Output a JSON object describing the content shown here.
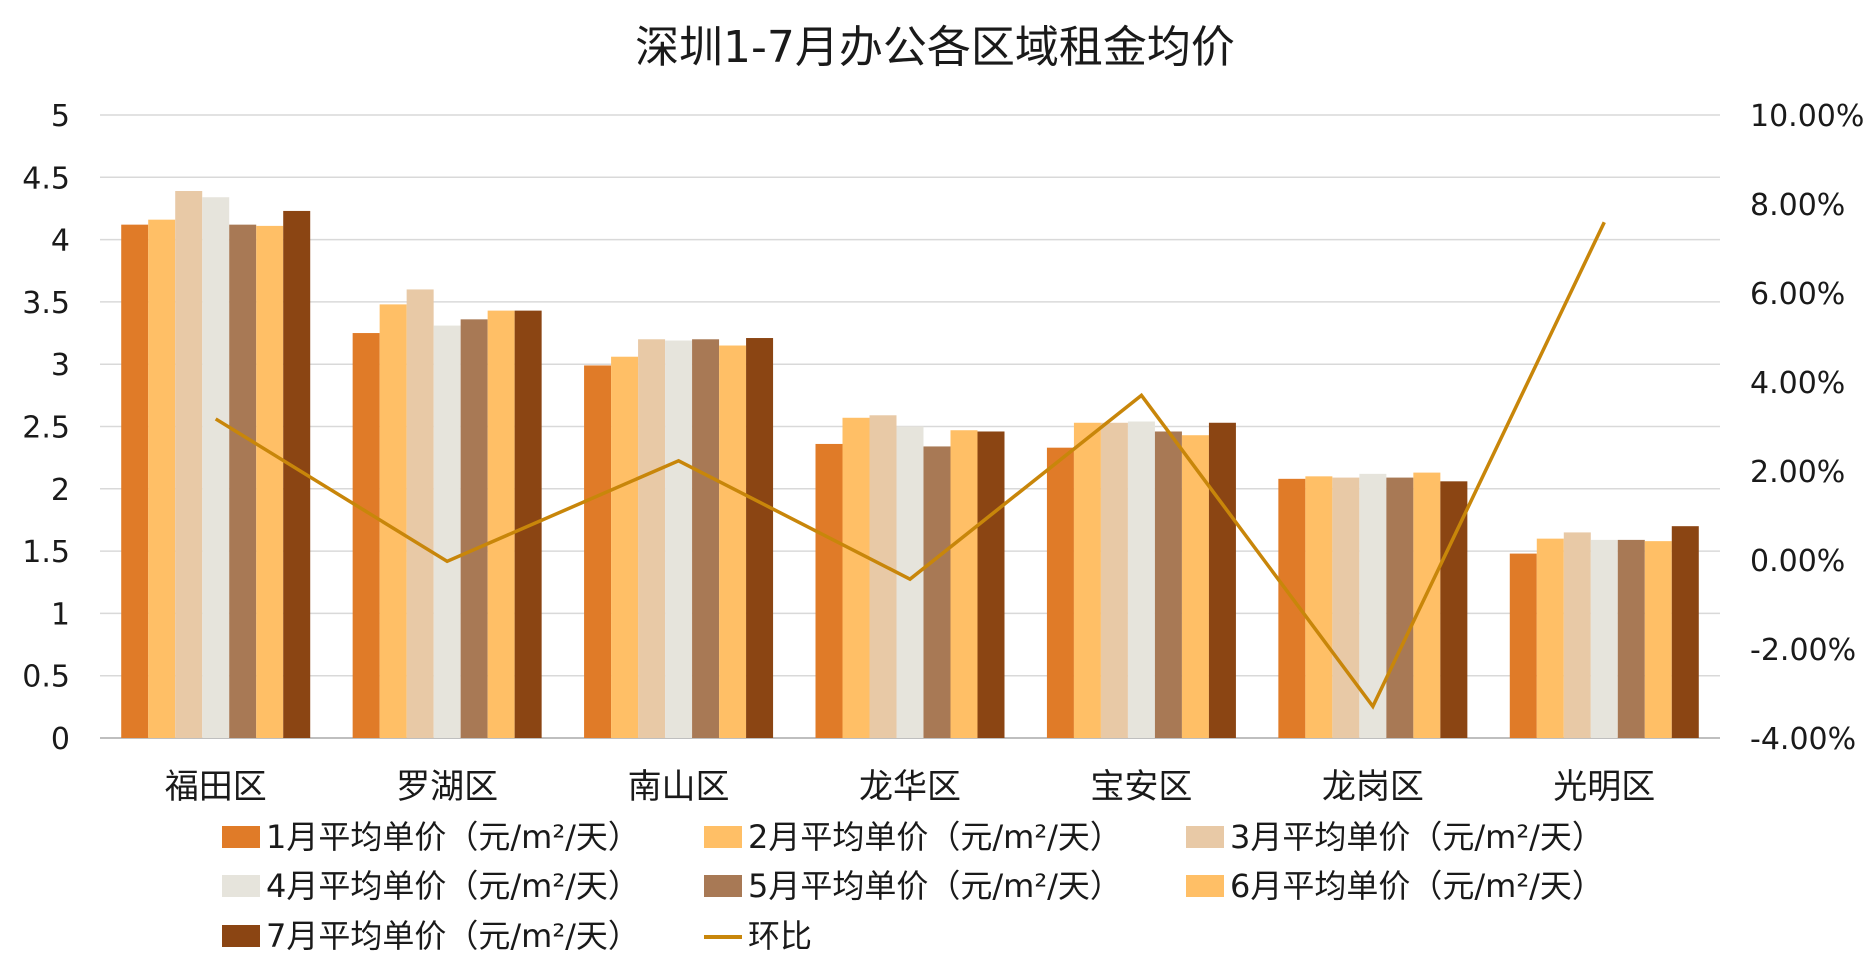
{
  "chart_data": {
    "type": "bar",
    "title": "深圳1-7月办公各区域租金均价",
    "categories": [
      "福田区",
      "罗湖区",
      "南山区",
      "龙华区",
      "宝安区",
      "龙岗区",
      "光明区"
    ],
    "y_left": {
      "min": 0,
      "max": 5,
      "step": 0.5,
      "ticks": [
        "0",
        "0.5",
        "1",
        "1.5",
        "2",
        "2.5",
        "3",
        "3.5",
        "4",
        "4.5",
        "5"
      ]
    },
    "y_right": {
      "min": -0.04,
      "max": 0.1,
      "step": 0.02,
      "ticks": [
        "-4.00%",
        "-2.00%",
        "0.00%",
        "2.00%",
        "4.00%",
        "6.00%",
        "8.00%",
        "10.00%"
      ]
    },
    "grid": true,
    "legend_position": "bottom",
    "series": [
      {
        "name": "1月平均单价（元/m²/天）",
        "color": "#E07B28",
        "values": [
          4.12,
          3.25,
          2.99,
          2.36,
          2.33,
          2.08,
          1.48
        ]
      },
      {
        "name": "2月平均单价（元/m²/天）",
        "color": "#FFBF66",
        "values": [
          4.16,
          3.48,
          3.06,
          2.57,
          2.53,
          2.1,
          1.6
        ]
      },
      {
        "name": "3月平均单价（元/m²/天）",
        "color": "#E8C9A6",
        "values": [
          4.39,
          3.6,
          3.2,
          2.59,
          2.53,
          2.09,
          1.65
        ]
      },
      {
        "name": "4月平均单价（元/m²/天）",
        "color": "#E6E4DC",
        "values": [
          4.34,
          3.31,
          3.19,
          2.5,
          2.54,
          2.12,
          1.59
        ]
      },
      {
        "name": "5月平均单价（元/m²/天）",
        "color": "#A87955",
        "values": [
          4.12,
          3.36,
          3.2,
          2.34,
          2.46,
          2.09,
          1.59
        ]
      },
      {
        "name": "6月平均单价（元/m²/天）",
        "color": "#FFBF66",
        "values": [
          4.11,
          3.43,
          3.15,
          2.47,
          2.43,
          2.13,
          1.58
        ]
      },
      {
        "name": "7月平均单价（元/m²/天）",
        "color": "#8B4513",
        "values": [
          4.23,
          3.43,
          3.21,
          2.46,
          2.53,
          2.06,
          1.7
        ]
      }
    ],
    "line_series": {
      "name": "环比",
      "color": "#C8860A",
      "axis": "right",
      "values": [
        0.0317,
        -0.0003,
        0.0223,
        -0.0043,
        0.037,
        -0.0329,
        0.0759
      ]
    }
  }
}
